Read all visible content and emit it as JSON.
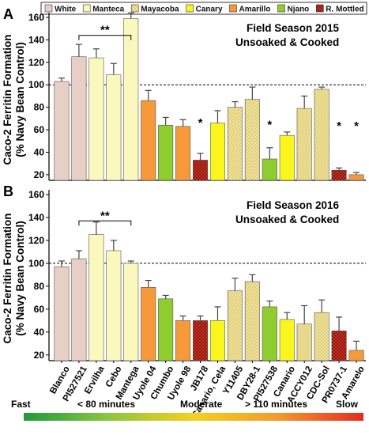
{
  "legend": [
    {
      "label": "White",
      "fill": "#e8cfc6",
      "pattern": "plain"
    },
    {
      "label": "Manteca",
      "fill": "#fbf8bd",
      "pattern": "plain"
    },
    {
      "label": "Mayacoba",
      "fill": "#f1e39a",
      "pattern": "dots"
    },
    {
      "label": "Canary",
      "fill": "#fbf51e",
      "pattern": "plain"
    },
    {
      "label": "Amarillo",
      "fill": "#f5993a",
      "pattern": "plain"
    },
    {
      "label": "Njano",
      "fill": "#8fcc2e",
      "pattern": "plain"
    },
    {
      "label": "R. Mottled",
      "fill": "#d8301e",
      "pattern": "checks"
    }
  ],
  "chart_data": {
    "type": "bar",
    "ylabel_line1": "Caco-2 Ferritin Formation",
    "ylabel_line2": "(% Navy Bean Control)",
    "categories": [
      "Blanco",
      "PI527521",
      "Ervilha",
      "Cebo",
      "Mantega",
      "Uyole 04",
      "Chumbo",
      "Uyole 98",
      "JB178",
      "Canario, Cela",
      "Y11405",
      "DBY28-1",
      "PI527538",
      "Canario",
      "ACCY012",
      "CDC-Sol",
      "PR0737-1",
      "Amarelo"
    ],
    "category_class": [
      "White",
      "White",
      "Manteca",
      "Manteca",
      "Manteca",
      "Amarillo",
      "Njano",
      "Amarillo",
      "R. Mottled",
      "Canary",
      "Mayacoba",
      "Mayacoba",
      "Njano",
      "Canary",
      "Mayacoba",
      "Mayacoba",
      "R. Mottled",
      "Amarillo"
    ],
    "reference_line": 100,
    "panels": [
      {
        "letter": "A",
        "title_line1": "Field Season 2015",
        "title_line2": "Unsoaked & Cooked",
        "ylim": [
          15,
          160
        ],
        "yticks": [
          20,
          40,
          60,
          80,
          100,
          120,
          140,
          160
        ],
        "values": [
          103,
          125,
          124,
          109,
          159,
          86,
          64,
          63,
          33,
          66,
          80,
          87,
          34,
          55,
          79,
          96,
          24,
          20
        ],
        "errors": [
          3,
          11,
          8,
          10,
          5,
          9,
          7,
          6,
          6,
          11,
          5,
          11,
          10,
          3,
          11,
          2,
          2,
          2
        ],
        "bracket": {
          "from": "PI527521",
          "to": "Mantega",
          "label": "**"
        },
        "significance": [
          {
            "category": "JB178",
            "label": "*"
          },
          {
            "category": "PI527538",
            "label": "*"
          },
          {
            "category": "PR0737-1",
            "label": "*"
          },
          {
            "category": "Amarelo",
            "label": "*"
          }
        ]
      },
      {
        "letter": "B",
        "title_line1": "Field Season 2016",
        "title_line2": "Unsoaked & Cooked",
        "ylim": [
          15,
          160
        ],
        "yticks": [
          20,
          40,
          60,
          80,
          100,
          120,
          140,
          160
        ],
        "values": [
          97,
          104,
          125,
          111,
          100,
          79,
          69,
          50,
          50,
          50,
          76,
          84,
          62,
          51,
          47,
          57,
          41,
          24
        ],
        "errors": [
          5,
          7,
          11,
          9,
          2,
          6,
          3,
          4,
          4,
          12,
          11,
          6,
          5,
          6,
          16,
          11,
          12,
          8
        ],
        "bracket": {
          "from": "PI527521",
          "to": "Mantega",
          "label": "**"
        },
        "significance": []
      }
    ]
  },
  "cooking_scale": {
    "fast": "Fast",
    "under80": "< 80 minutes",
    "moderate": "Moderate",
    "over110": "> 110 minutes",
    "slow": "Slow",
    "gradient": [
      "#1f9a3c",
      "#8cc63e",
      "#f5d01f",
      "#f39a2b",
      "#e42b22"
    ]
  }
}
